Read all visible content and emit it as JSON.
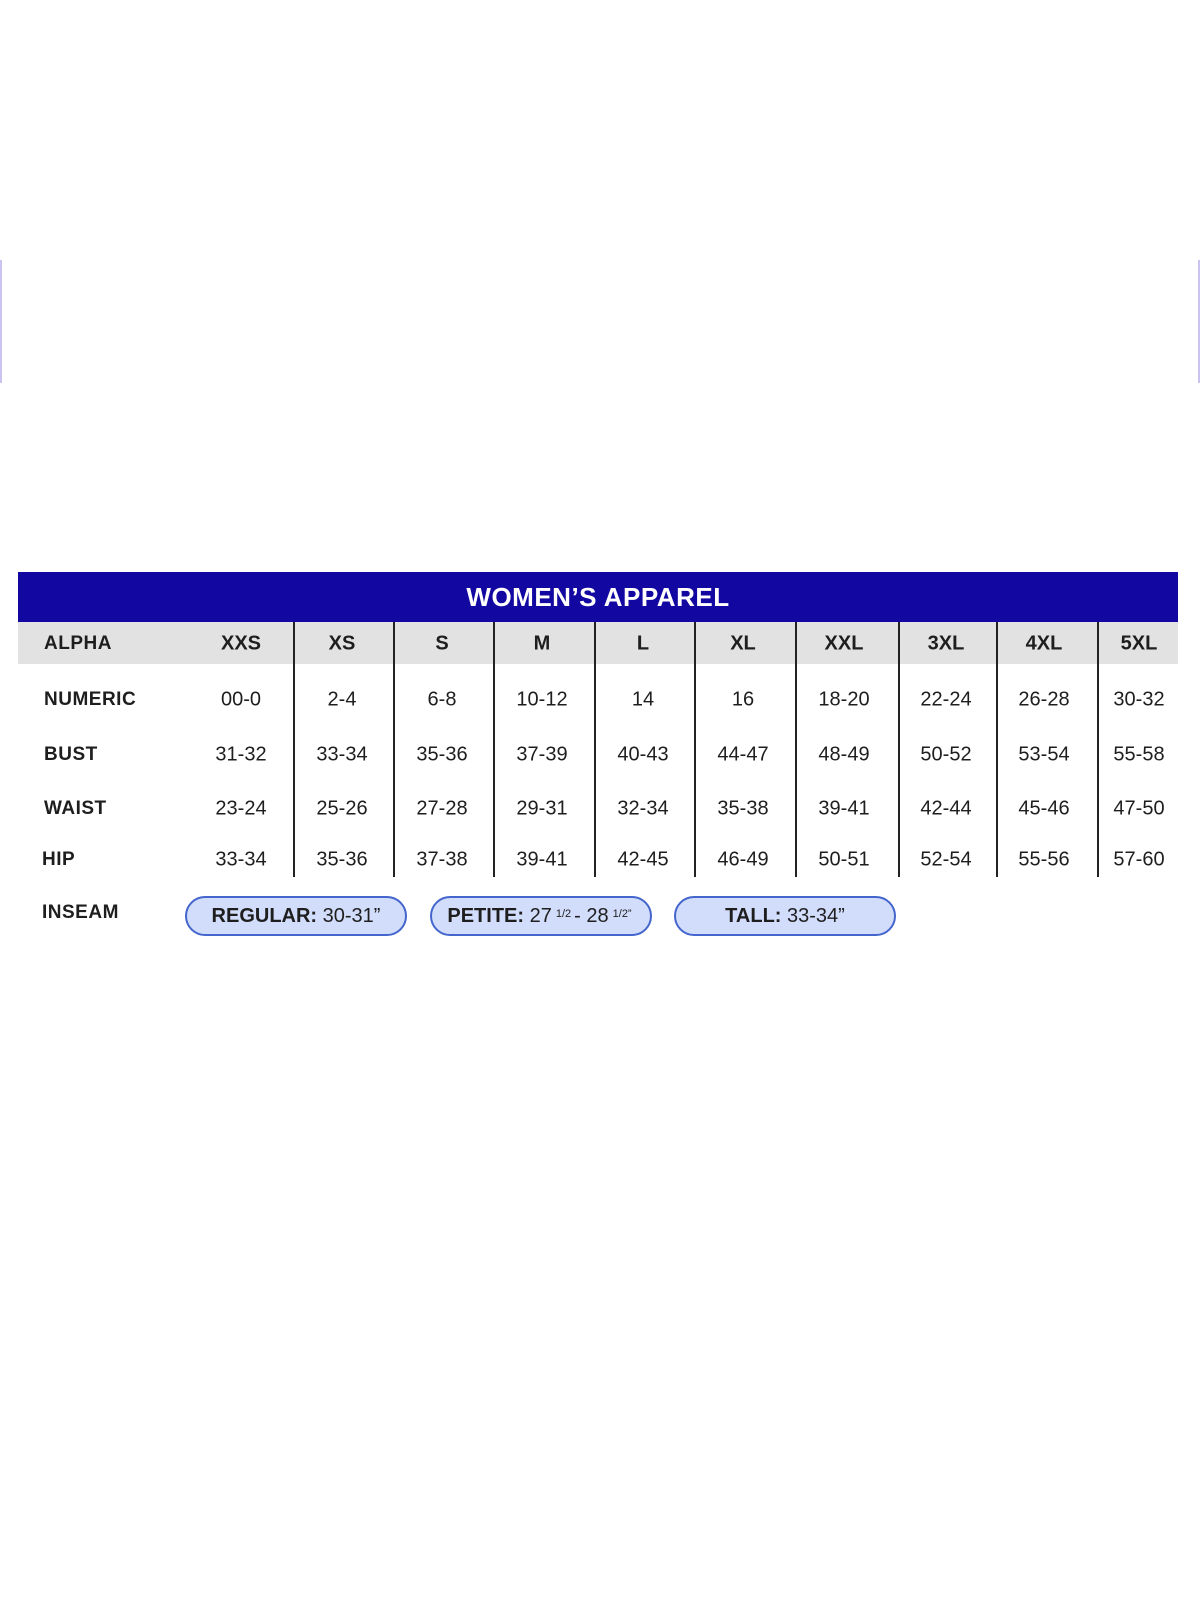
{
  "title": "WOMEN’S APPAREL",
  "colors": {
    "title_bar": "#1207a0",
    "alpha_row": "#e2e2e2",
    "pill_fill": "#d2ddfb",
    "pill_border": "#4466cc"
  },
  "rows": [
    {
      "label": "ALPHA",
      "values": [
        "XXS",
        "XS",
        "S",
        "M",
        "L",
        "XL",
        "XXL",
        "3XL",
        "4XL",
        "5XL"
      ]
    },
    {
      "label": "NUMERIC",
      "values": [
        "00-0",
        "2-4",
        "6-8",
        "10-12",
        "14",
        "16",
        "18-20",
        "22-24",
        "26-28",
        "30-32"
      ]
    },
    {
      "label": "BUST",
      "values": [
        "31-32",
        "33-34",
        "35-36",
        "37-39",
        "40-43",
        "44-47",
        "48-49",
        "50-52",
        "53-54",
        "55-58"
      ]
    },
    {
      "label": "WAIST",
      "values": [
        "23-24",
        "25-26",
        "27-28",
        "29-31",
        "32-34",
        "35-38",
        "39-41",
        "42-44",
        "45-46",
        "47-50"
      ]
    },
    {
      "label": "HIP",
      "values": [
        "33-34",
        "35-36",
        "37-38",
        "39-41",
        "42-45",
        "46-49",
        "50-51",
        "52-54",
        "55-56",
        "57-60"
      ]
    }
  ],
  "inseam": {
    "label": "INSEAM",
    "regular": {
      "name": "REGULAR:",
      "value": "30-31”"
    },
    "petite": {
      "name": "PETITE:",
      "a": "27",
      "a_frac": "1/2",
      "sep": "-",
      "b": "28",
      "b_frac": "1/2”"
    },
    "tall": {
      "name": "TALL:",
      "value": "33-34”"
    }
  }
}
